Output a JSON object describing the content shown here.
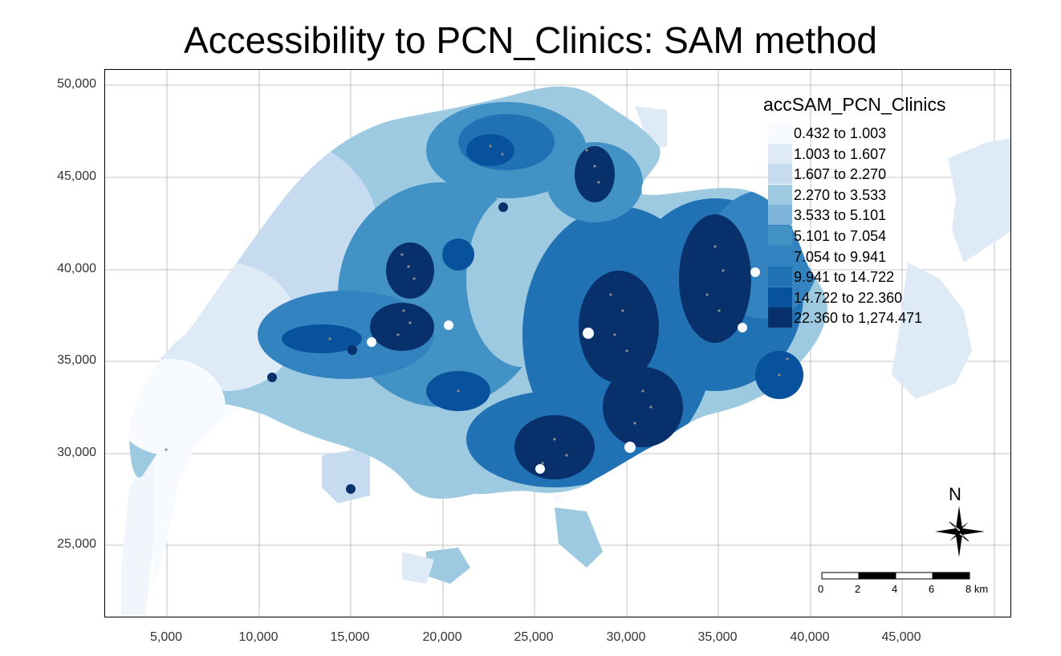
{
  "title": "Accessibility to PCN_Clinics: SAM method",
  "axes": {
    "y_ticks": [
      "50,000",
      "45,000",
      "40,000",
      "35,000",
      "30,000",
      "25,000"
    ],
    "x_ticks": [
      "5,000",
      "10,000",
      "15,000",
      "20,000",
      "25,000",
      "30,000",
      "35,000",
      "40,000",
      "45,000"
    ]
  },
  "legend": {
    "title": "accSAM_PCN_Clinics",
    "classes": [
      {
        "label": "0.432 to 1.003",
        "color": "#f7fbff"
      },
      {
        "label": "1.003 to 1.607",
        "color": "#deebf7"
      },
      {
        "label": "1.607 to 2.270",
        "color": "#c6dbef"
      },
      {
        "label": "2.270 to 3.533",
        "color": "#9ecae1"
      },
      {
        "label": "3.533 to 5.101",
        "color": "#7fb5db"
      },
      {
        "label": "5.101 to 7.054",
        "color": "#4292c6"
      },
      {
        "label": "7.054 to 9.941",
        "color": "#3383c0"
      },
      {
        "label": "9.941 to 14.722",
        "color": "#2171b5"
      },
      {
        "label": "14.722 to 22.360",
        "color": "#08519c"
      },
      {
        "label": "22.360 to 1,274.471",
        "color": "#08306b"
      }
    ]
  },
  "north_arrow": {
    "label": "N",
    "icon": "compass-rose-icon"
  },
  "scale_bar": {
    "ticks": [
      "0",
      "2",
      "4",
      "6",
      "8 km"
    ]
  },
  "colors": {
    "grid": "#b3b3b3",
    "clinic_points": "#8c8c8c",
    "frame": "#000000"
  }
}
